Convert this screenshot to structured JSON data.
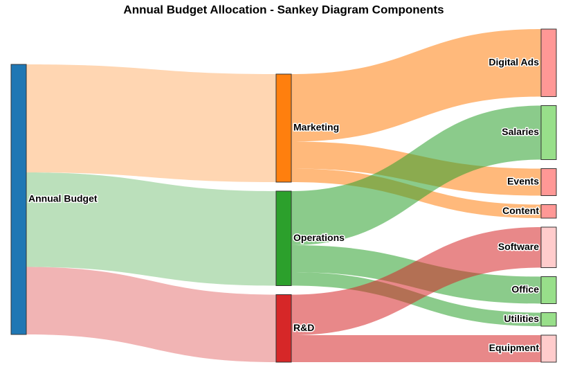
{
  "chart_data": {
    "type": "sankey",
    "title": "Annual Budget Allocation - Sankey Diagram Components",
    "nodes": [
      {
        "name": "Annual Budget",
        "color": "#1f77b4"
      },
      {
        "name": "Marketing",
        "color": "#ff7f0e"
      },
      {
        "name": "Operations",
        "color": "#2ca02c"
      },
      {
        "name": "R&D",
        "color": "#d62728"
      },
      {
        "name": "Digital Ads",
        "color": "#ff9896"
      },
      {
        "name": "Salaries",
        "color": "#98df8a"
      },
      {
        "name": "Events",
        "color": "#ff9896"
      },
      {
        "name": "Content",
        "color": "#ff9896"
      },
      {
        "name": "Software",
        "color": "#ffcccc"
      },
      {
        "name": "Office",
        "color": "#98df8a"
      },
      {
        "name": "Utilities",
        "color": "#98df8a"
      },
      {
        "name": "Equipment",
        "color": "#ffcccc"
      }
    ],
    "links": [
      {
        "source": 0,
        "target": 1,
        "value": 400,
        "color": "rgba(255,127,14,0.32)"
      },
      {
        "source": 0,
        "target": 2,
        "value": 350,
        "color": "rgba(44,160,44,0.32)"
      },
      {
        "source": 0,
        "target": 3,
        "value": 250,
        "color": "rgba(214,39,40,0.35)"
      },
      {
        "source": 1,
        "target": 4,
        "value": 250,
        "color": "rgba(255,127,14,0.55)"
      },
      {
        "source": 1,
        "target": 6,
        "value": 100,
        "color": "rgba(255,127,14,0.55)"
      },
      {
        "source": 1,
        "target": 7,
        "value": 50,
        "color": "rgba(255,127,14,0.55)"
      },
      {
        "source": 2,
        "target": 5,
        "value": 200,
        "color": "rgba(44,160,44,0.55)"
      },
      {
        "source": 2,
        "target": 9,
        "value": 100,
        "color": "rgba(44,160,44,0.55)"
      },
      {
        "source": 2,
        "target": 10,
        "value": 50,
        "color": "rgba(44,160,44,0.55)"
      },
      {
        "source": 3,
        "target": 8,
        "value": 150,
        "color": "rgba(214,39,40,0.55)"
      },
      {
        "source": 3,
        "target": 11,
        "value": 100,
        "color": "rgba(214,39,40,0.55)"
      }
    ]
  }
}
